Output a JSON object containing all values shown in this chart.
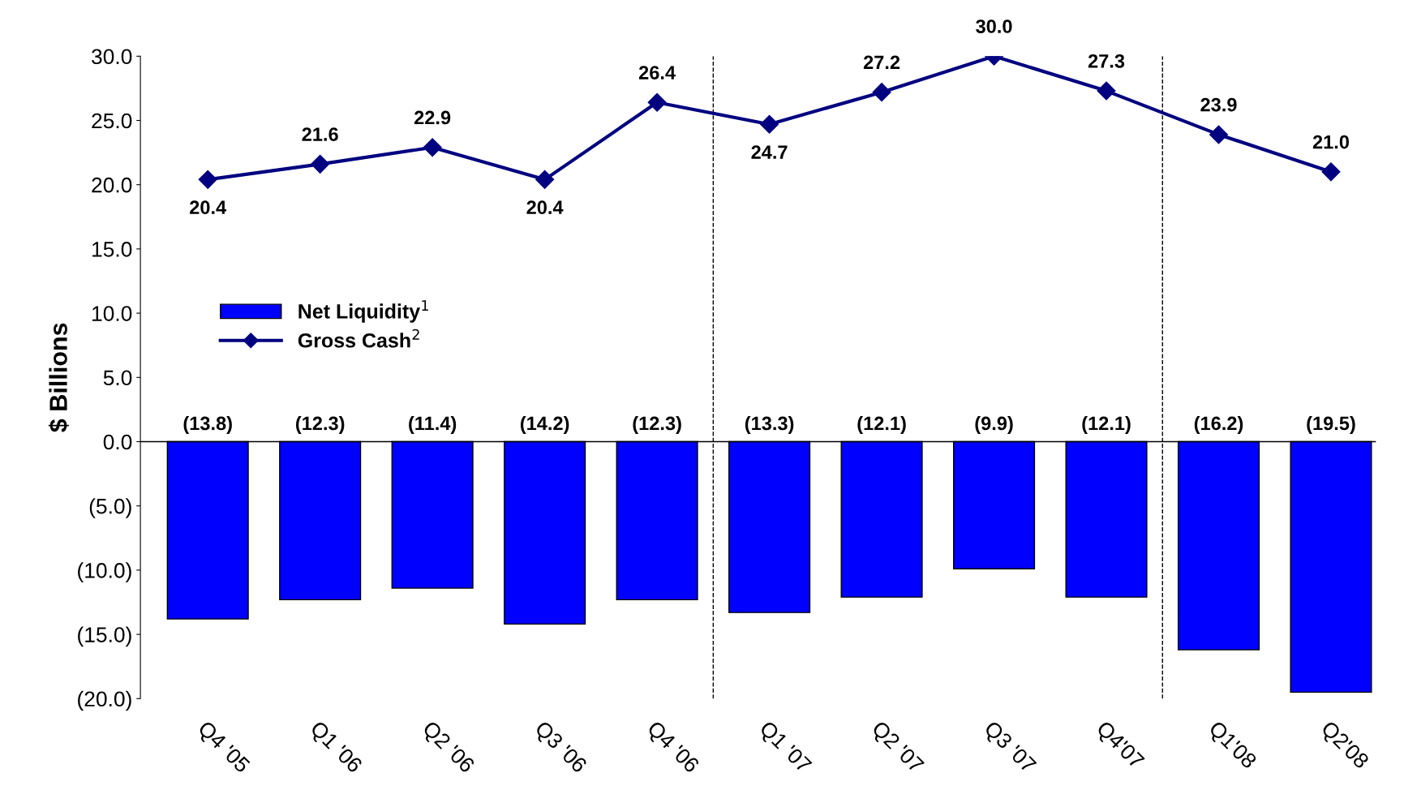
{
  "chart_data": {
    "type": "bar",
    "ylabel": "$ Billions",
    "categories": [
      "Q4 '05",
      "Q1 '06",
      "Q2 '06",
      "Q3 '06",
      "Q4 '06",
      "Q1 '07",
      "Q2 '07",
      "Q3 '07",
      "Q4'07",
      "Q1'08",
      "Q2'08"
    ],
    "series": [
      {
        "name": "Net Liquidity$^{1}$",
        "color": "#0000ff",
        "values": [
          -13.8,
          -12.3,
          -11.4,
          -14.2,
          -12.3,
          -13.3,
          -12.1,
          -9.9,
          -12.1,
          -16.2,
          -19.5
        ],
        "value_labels": [
          "(13.8)",
          "(12.3)",
          "(11.4)",
          "(14.2)",
          "(12.3)",
          "(13.3)",
          "(12.1)",
          "(9.9)",
          "(12.1)",
          "(16.2)",
          "(19.5)"
        ]
      },
      {
        "name": "Gross Cash$^{2}$",
        "type": "line",
        "color": "#000080",
        "marker": "diamond",
        "values": [
          20.4,
          21.6,
          22.9,
          20.4,
          26.4,
          24.7,
          27.2,
          30.0,
          27.3,
          23.9,
          21.0
        ],
        "value_labels": [
          "20.4",
          "21.6",
          "22.9",
          "20.4",
          "26.4",
          "24.7",
          "27.2",
          "30.0",
          "27.3",
          "23.9",
          "21.0"
        ]
      }
    ],
    "ylim": [
      -20,
      30
    ],
    "yticks": [
      {
        "value": -20,
        "label": "(20.0)"
      },
      {
        "value": -15,
        "label": "(15.0)"
      },
      {
        "value": -10,
        "label": "(10.0)"
      },
      {
        "value": -5,
        "label": "(5.0)"
      },
      {
        "value": 0,
        "label": "0.0"
      },
      {
        "value": 5,
        "label": "5.0"
      },
      {
        "value": 10,
        "label": "10.0"
      },
      {
        "value": 15,
        "label": "15.0"
      },
      {
        "value": 20,
        "label": "20.0"
      },
      {
        "value": 25,
        "label": "25.0"
      },
      {
        "value": 30,
        "label": "30.0"
      }
    ],
    "legend": "left",
    "grid": false
  }
}
